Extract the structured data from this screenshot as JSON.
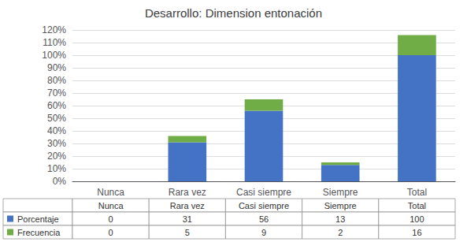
{
  "chart_data": {
    "type": "bar",
    "title": "Desarrollo: Dimension entonación",
    "categories": [
      "Nunca",
      "Rara vez",
      "Casi siempre",
      "Siempre",
      "Total"
    ],
    "series": [
      {
        "name": "Porcentaje",
        "color": "#4472C4",
        "values": [
          0,
          31,
          56,
          13,
          100
        ]
      },
      {
        "name": "Frecuencia",
        "color": "#70AD47",
        "values": [
          0,
          5,
          9,
          2,
          16
        ]
      }
    ],
    "stacked": true,
    "ylim": [
      0,
      120
    ],
    "yticks": [
      {
        "value": 0,
        "label": "0%"
      },
      {
        "value": 10,
        "label": "10%"
      },
      {
        "value": 20,
        "label": "20%"
      },
      {
        "value": 30,
        "label": "30%"
      },
      {
        "value": 40,
        "label": "40%"
      },
      {
        "value": 50,
        "label": "50%"
      },
      {
        "value": 60,
        "label": "60%"
      },
      {
        "value": 70,
        "label": "70%"
      },
      {
        "value": 80,
        "label": "80%"
      },
      {
        "value": 90,
        "label": "90%"
      },
      {
        "value": 100,
        "label": "100%"
      },
      {
        "value": 110,
        "label": "110%"
      },
      {
        "value": 120,
        "label": "120%"
      }
    ],
    "grid": true
  }
}
